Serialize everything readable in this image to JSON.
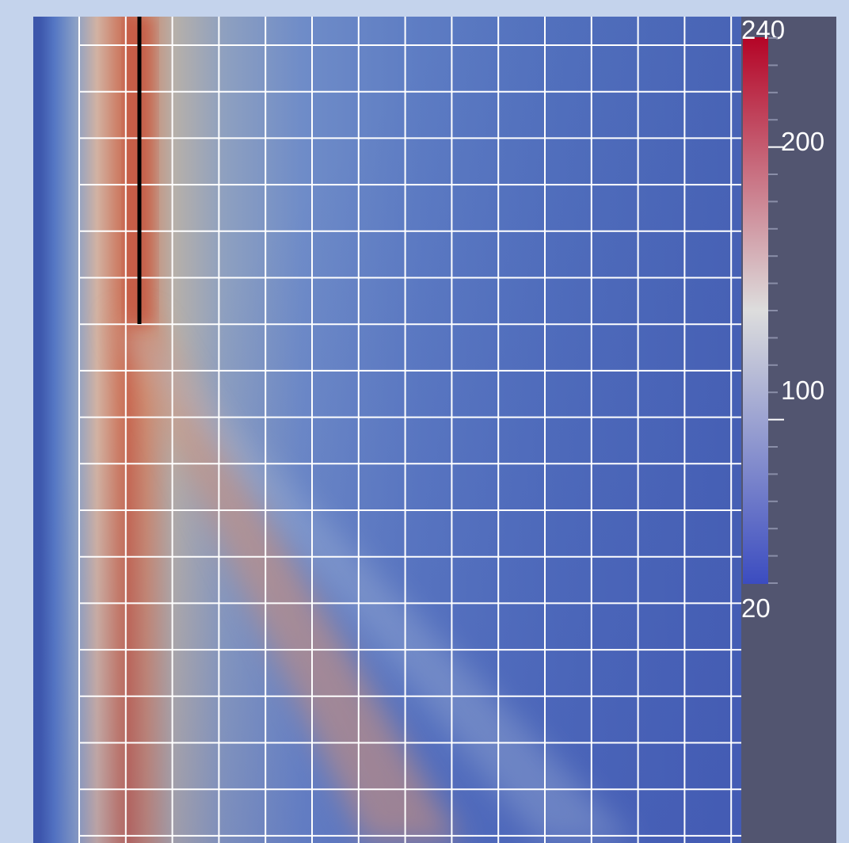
{
  "colorbar": {
    "min": 20,
    "max": 240,
    "labels": [
      "240",
      "200",
      "100",
      "20"
    ],
    "colormap": [
      "#3b4cc0",
      "#dddddd",
      "#b40426"
    ],
    "minor_tick_count": 21
  },
  "colors": {
    "outer_background": "#c4d3ec",
    "viewport_background": "#525570",
    "grid_lines": "#ffffff",
    "crack_line": "#000000"
  },
  "grid": {
    "columns": 15,
    "rows": 18
  }
}
